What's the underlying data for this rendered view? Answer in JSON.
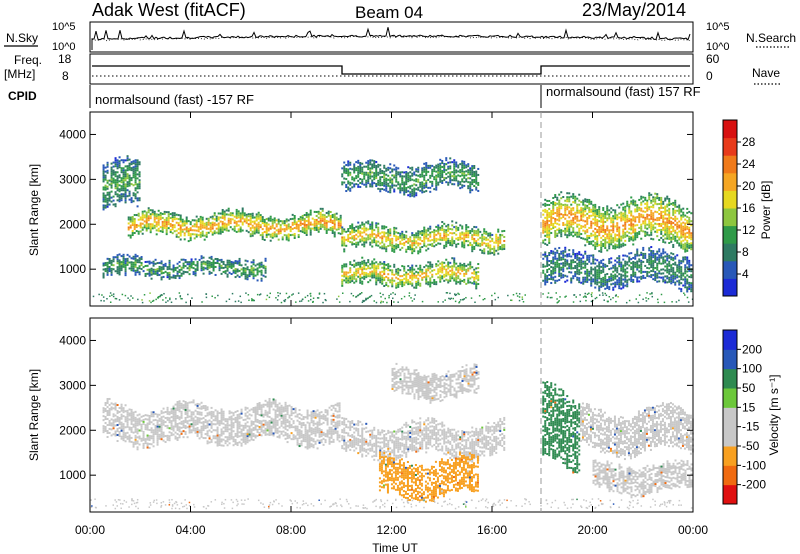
{
  "header": {
    "radar": "Adak West (fitACF)",
    "beam": "Beam 04",
    "date": "23/May/2014"
  },
  "strip": {
    "nsky_label": "N.Sky",
    "nsearch_label": "N.Search",
    "noise_ticks": [
      "10^5",
      "10^0"
    ],
    "freq_label": "Freq.",
    "freq_unit": "[MHz]",
    "freq_ticks": [
      "18",
      "8"
    ],
    "nave_label": "Nave",
    "nave_ticks": [
      "60",
      "0"
    ],
    "cpid_label": "CPID",
    "cpid_segments": [
      "normalsound (fast) -157 RF",
      "normalsound (fast) 157 RF"
    ]
  },
  "colors": {
    "power": [
      "#1c2bd6",
      "#2858b8",
      "#2e7a62",
      "#2f9a48",
      "#8dc63f",
      "#e6d820",
      "#f5a623",
      "#f07a1a",
      "#e83a1a",
      "#d81010"
    ],
    "velocity": [
      "#e01010",
      "#f06a10",
      "#f8a020",
      "#c8c8c8",
      "#c8c8c8",
      "#6cc83a",
      "#2e8a50",
      "#2858b8",
      "#1c2bd6"
    ]
  },
  "chart_data": [
    {
      "type": "heatmap",
      "name": "power",
      "xlabel": "Time UT",
      "ylabel": "Slant Range [km]",
      "xlim": [
        0,
        24
      ],
      "ylim": [
        180,
        4500
      ],
      "x_ticks": [
        "00:00",
        "04:00",
        "08:00",
        "12:00",
        "16:00",
        "20:00",
        "00:00"
      ],
      "y_ticks": [
        1000,
        2000,
        3000,
        4000
      ],
      "colorbar_label": "Power [dB]",
      "colorbar_ticks": [
        4,
        8,
        12,
        16,
        20,
        24,
        28
      ],
      "features": [
        {
          "t": [
            0.5,
            2.0
          ],
          "range": [
            2300,
            3400
          ],
          "level": 10
        },
        {
          "t": [
            1.5,
            10.0
          ],
          "range": [
            1700,
            2300
          ],
          "level": 20
        },
        {
          "t": [
            10.0,
            16.5
          ],
          "range": [
            1400,
            2000
          ],
          "level": 18
        },
        {
          "t": [
            10.0,
            15.5
          ],
          "range": [
            2700,
            3400
          ],
          "level": 10
        },
        {
          "t": [
            10.0,
            15.5
          ],
          "range": [
            600,
            1200
          ],
          "level": 18
        },
        {
          "t": [
            0.5,
            7.0
          ],
          "range": [
            800,
            1300
          ],
          "level": 10
        },
        {
          "t": [
            18.0,
            24.0
          ],
          "range": [
            1500,
            2600
          ],
          "level": 20
        },
        {
          "t": [
            18.0,
            24.0
          ],
          "range": [
            600,
            1400
          ],
          "level": 8
        }
      ]
    },
    {
      "type": "heatmap",
      "name": "velocity",
      "xlabel": "Time UT",
      "ylabel": "Slant Range [km]",
      "xlim": [
        0,
        24
      ],
      "ylim": [
        180,
        4500
      ],
      "x_ticks": [
        "00:00",
        "04:00",
        "08:00",
        "12:00",
        "16:00",
        "20:00",
        "00:00"
      ],
      "y_ticks": [
        1000,
        2000,
        3000,
        4000
      ],
      "colorbar_label": "Velocity [m s⁻¹]",
      "colorbar_ticks": [
        -200,
        -100,
        -50,
        -15,
        15,
        50,
        100,
        200
      ],
      "features": [
        {
          "t": [
            0.5,
            10.0
          ],
          "range": [
            1700,
            2600
          ],
          "velocity": 0
        },
        {
          "t": [
            10.0,
            16.5
          ],
          "range": [
            1400,
            2200
          ],
          "velocity": 0
        },
        {
          "t": [
            11.5,
            15.5
          ],
          "range": [
            500,
            1400
          ],
          "velocity": -60
        },
        {
          "t": [
            12.0,
            15.5
          ],
          "range": [
            2700,
            3400
          ],
          "velocity": -40
        },
        {
          "t": [
            18.0,
            19.5
          ],
          "range": [
            1200,
            2900
          ],
          "velocity": 60
        },
        {
          "t": [
            19.5,
            24.0
          ],
          "range": [
            1500,
            2500
          ],
          "velocity": 0
        },
        {
          "t": [
            20.0,
            24.0
          ],
          "range": [
            600,
            1300
          ],
          "velocity": 0
        }
      ]
    }
  ]
}
